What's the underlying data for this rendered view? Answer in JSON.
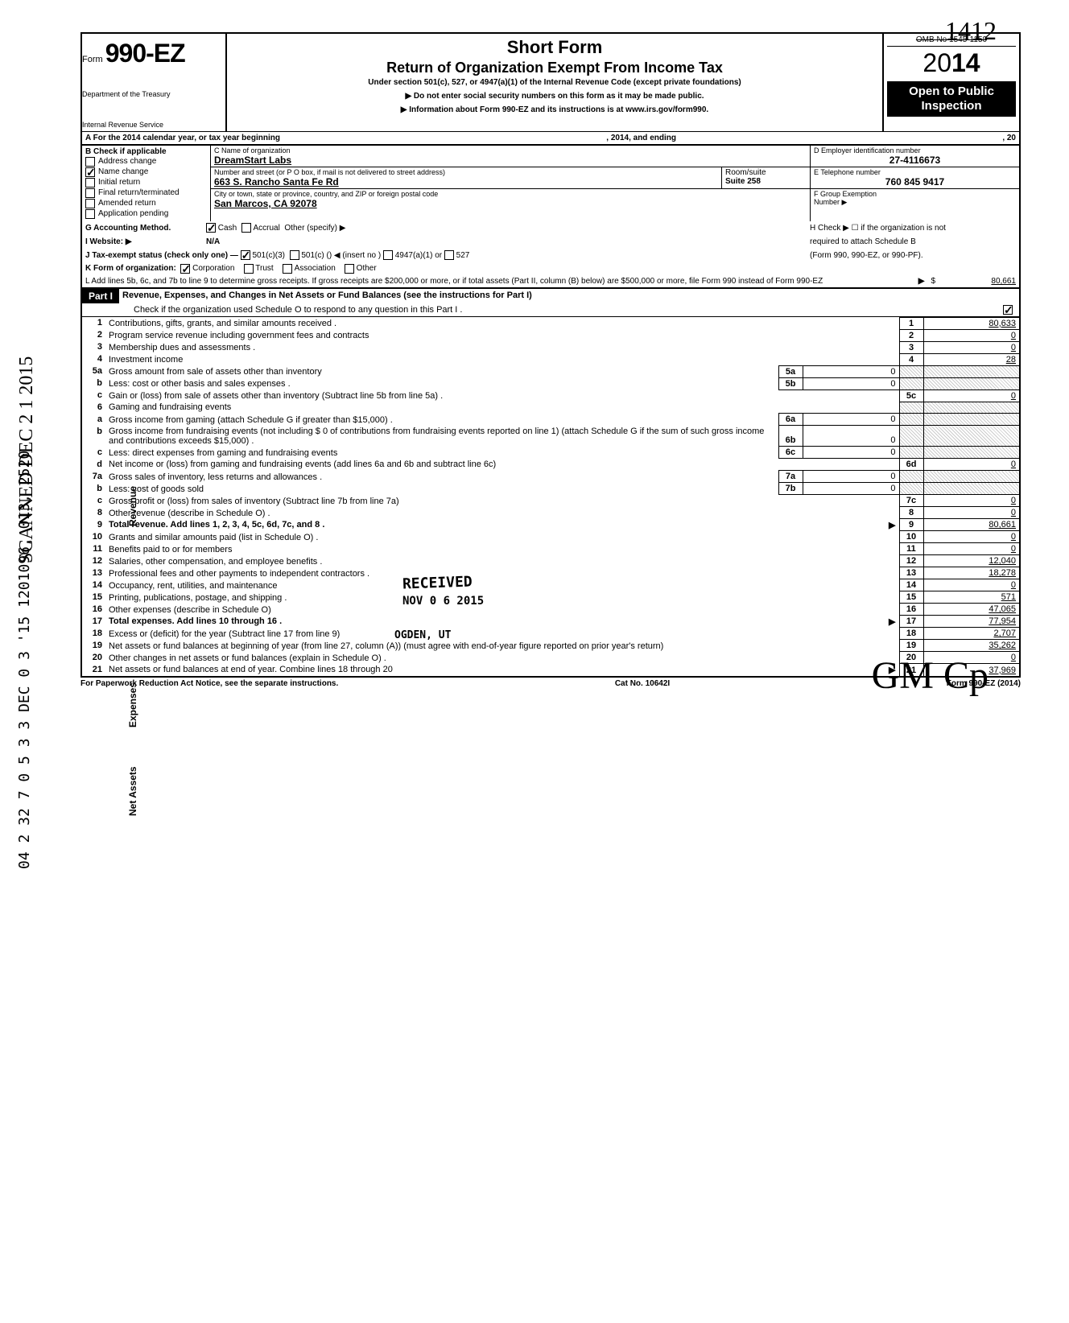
{
  "handwrite_top": "1412",
  "side_text": "SCANNED DEC 2 1 2015",
  "side_text2": "04 2 32 7 0 5 3 3 DEC 0 3 '15 1201096, 013, 2520",
  "header": {
    "form_label": "Form",
    "form_number": "990-EZ",
    "dept1": "Department of the Treasury",
    "dept2": "Internal Revenue Service",
    "title1": "Short Form",
    "title2": "Return of Organization Exempt From Income Tax",
    "sub": "Under section 501(c), 527, or 4947(a)(1) of the Internal Revenue Code (except private foundations)",
    "arrow1": "▶ Do not enter social security numbers on this form as it may be made public.",
    "arrow2": "▶ Information about Form 990-EZ and its instructions is at www.irs.gov/form990.",
    "omb": "OMB No 1545-1150",
    "year_prefix": "20",
    "year_bold": "14",
    "open_public": "Open to Public Inspection"
  },
  "row_a": {
    "left": "A For the 2014 calendar year, or tax year beginning",
    "mid": ", 2014, and ending",
    "right": ", 20"
  },
  "col_b": {
    "header": "B Check if applicable",
    "items": [
      "Address change",
      "Name change",
      "Initial return",
      "Final return/terminated",
      "Amended return",
      "Application pending"
    ],
    "checked_index": 1
  },
  "col_c": {
    "name_lbl": "C Name of organization",
    "name_val": "DreamStart Labs",
    "addr_lbl": "Number and street (or P O  box, if mail is not delivered to street address)",
    "addr_val": "663 S. Rancho Santa Fe Rd",
    "room_lbl": "Room/suite",
    "room_val": "Suite 258",
    "city_lbl": "City or town, state or province, country, and ZIP or foreign postal code",
    "city_val": "San Marcos, CA 92078"
  },
  "col_de": {
    "d_lbl": "D Employer identification number",
    "d_val": "27-4116673",
    "e_lbl": "E Telephone number",
    "e_val": "760 845 9417",
    "f_lbl": "F Group Exemption",
    "f_lbl2": "Number ▶"
  },
  "row_g": {
    "label": "G Accounting Method.",
    "opt1": "Cash",
    "opt2": "Accrual",
    "opt3": "Other (specify) ▶"
  },
  "row_i": {
    "label": "I  Website: ▶",
    "val": "N/A"
  },
  "col_h": {
    "line1": "H Check ▶ ☐ if the organization is not",
    "line2": "required to attach Schedule B",
    "line3": "(Form 990, 990-EZ, or 990-PF)."
  },
  "row_j": {
    "label": "J Tax-exempt status (check only one) —",
    "opt1": "501(c)(3)",
    "opt2": "501(c) (",
    "opt2b": ") ◀ (insert no )",
    "opt3": "4947(a)(1) or",
    "opt4": "527"
  },
  "row_k": {
    "label": "K Form of organization:",
    "opt1": "Corporation",
    "opt2": "Trust",
    "opt3": "Association",
    "opt4": "Other"
  },
  "row_l": {
    "text": "L Add lines 5b, 6c, and 7b to line 9 to determine gross receipts. If gross receipts are $200,000 or more, or if total assets (Part II, column (B) below) are $500,000 or more, file Form 990 instead of Form 990-EZ",
    "arrow": "▶",
    "dollar": "$",
    "val": "80,661"
  },
  "part1": {
    "label": "Part I",
    "title": "Revenue, Expenses, and Changes in Net Assets or Fund Balances (see the instructions for Part I)",
    "check_line": "Check if the organization used Schedule O to respond to any question in this Part I ."
  },
  "stamp1": "RECEIVED",
  "stamp2": "NOV 0 6 2015",
  "stamp3": "OGDEN, UT",
  "side_revenue": "Revenue",
  "side_expenses": "Expenses",
  "side_netassets": "Net Assets",
  "lines": [
    {
      "n": "1",
      "desc": "Contributions, gifts, grants, and similar amounts received .",
      "box": "1",
      "val": "80,633"
    },
    {
      "n": "2",
      "desc": "Program service revenue including government fees and contracts",
      "box": "2",
      "val": "0"
    },
    {
      "n": "3",
      "desc": "Membership dues and assessments .",
      "box": "3",
      "val": "0"
    },
    {
      "n": "4",
      "desc": "Investment income",
      "box": "4",
      "val": "28"
    },
    {
      "n": "5a",
      "desc": "Gross amount from sale of assets other than inventory",
      "mini": "5a",
      "minival": "0",
      "shaded": true
    },
    {
      "n": "b",
      "desc": "Less: cost or other basis and sales expenses .",
      "mini": "5b",
      "minival": "0",
      "shaded": true
    },
    {
      "n": "c",
      "desc": "Gain or (loss) from sale of assets other than inventory (Subtract line 5b from line 5a) .",
      "box": "5c",
      "val": "0"
    },
    {
      "n": "6",
      "desc": "Gaming and fundraising events",
      "shaded": true
    },
    {
      "n": "a",
      "desc": "Gross income from gaming (attach Schedule G if greater than $15,000) .",
      "mini": "6a",
      "minival": "0",
      "shaded": true
    },
    {
      "n": "b",
      "desc": "Gross income from fundraising events (not including  $                     0 of contributions from fundraising events reported on line 1) (attach Schedule G if the sum of such gross income and contributions exceeds $15,000) .",
      "mini": "6b",
      "minival": "0",
      "shaded": true
    },
    {
      "n": "c",
      "desc": "Less: direct expenses from gaming and fundraising events",
      "mini": "6c",
      "minival": "0",
      "shaded": true
    },
    {
      "n": "d",
      "desc": "Net income or (loss) from gaming and fundraising events (add lines 6a and 6b and subtract line 6c)",
      "box": "6d",
      "val": "0"
    },
    {
      "n": "7a",
      "desc": "Gross sales of inventory, less returns and allowances .",
      "mini": "7a",
      "minival": "0",
      "shaded": true
    },
    {
      "n": "b",
      "desc": "Less: cost of goods sold",
      "mini": "7b",
      "minival": "0",
      "shaded": true
    },
    {
      "n": "c",
      "desc": "Gross profit or (loss) from sales of inventory (Subtract line 7b from line 7a)",
      "box": "7c",
      "val": "0"
    },
    {
      "n": "8",
      "desc": "Other revenue (describe in Schedule O) .",
      "box": "8",
      "val": "0"
    },
    {
      "n": "9",
      "desc": "Total revenue. Add lines 1, 2, 3, 4, 5c, 6d, 7c, and 8 .",
      "box": "9",
      "val": "80,661",
      "bold": true,
      "arrow": true
    },
    {
      "n": "10",
      "desc": "Grants and similar amounts paid (list in Schedule O) .",
      "box": "10",
      "val": "0"
    },
    {
      "n": "11",
      "desc": "Benefits paid to or for members",
      "box": "11",
      "val": "0"
    },
    {
      "n": "12",
      "desc": "Salaries, other compensation, and employee benefits .",
      "box": "12",
      "val": "12,040"
    },
    {
      "n": "13",
      "desc": "Professional fees and other payments to independent contractors .",
      "box": "13",
      "val": "18,278"
    },
    {
      "n": "14",
      "desc": "Occupancy, rent, utilities, and maintenance",
      "box": "14",
      "val": "0"
    },
    {
      "n": "15",
      "desc": "Printing, publications, postage, and shipping .",
      "box": "15",
      "val": "571"
    },
    {
      "n": "16",
      "desc": "Other expenses (describe in Schedule O)",
      "box": "16",
      "val": "47,065"
    },
    {
      "n": "17",
      "desc": "Total expenses. Add lines 10 through 16 .",
      "box": "17",
      "val": "77,954",
      "bold": true,
      "arrow": true
    },
    {
      "n": "18",
      "desc": "Excess or (deficit) for the year (Subtract line 17 from line 9)",
      "box": "18",
      "val": "2,707"
    },
    {
      "n": "19",
      "desc": "Net assets or fund balances at beginning of year (from line 27, column (A)) (must agree with end-of-year figure reported on prior year's return)",
      "box": "19",
      "val": "35,262"
    },
    {
      "n": "20",
      "desc": "Other changes in net assets or fund balances (explain in Schedule O) .",
      "box": "20",
      "val": "0"
    },
    {
      "n": "21",
      "desc": "Net assets or fund balances at end of year. Combine lines 18 through 20",
      "box": "21",
      "val": "37,969",
      "arrow": true
    }
  ],
  "footer": {
    "left": "For Paperwork Reduction Act Notice, see the separate instructions.",
    "mid": "Cat No. 10642I",
    "right": "Form 990-EZ (2014)"
  },
  "initials": "GM      Cp"
}
